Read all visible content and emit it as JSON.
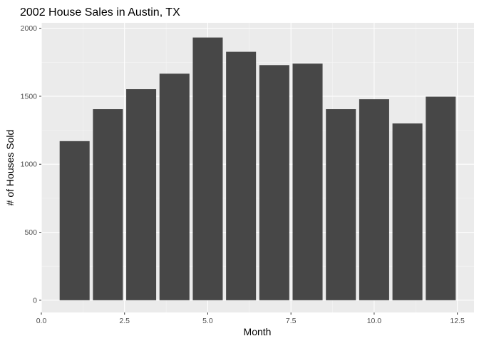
{
  "chart_data": {
    "type": "bar",
    "title": "2002 House Sales in Austin, TX",
    "xlabel": "Month",
    "ylabel": "# of Houses Sold",
    "x": [
      1,
      2,
      3,
      4,
      5,
      6,
      7,
      8,
      9,
      10,
      11,
      12
    ],
    "values": [
      1170,
      1405,
      1552,
      1666,
      1932,
      1827,
      1729,
      1740,
      1405,
      1478,
      1300,
      1497
    ],
    "xlim": [
      0,
      13
    ],
    "ylim": [
      -90,
      2040
    ],
    "xticks": [
      0,
      2.5,
      5,
      7.5,
      10,
      12.5
    ],
    "xtick_labels": [
      "0.0",
      "2.5",
      "5.0",
      "7.5",
      "10.0",
      "12.5"
    ],
    "yticks": [
      0,
      500,
      1000,
      1500,
      2000
    ],
    "ytick_labels": [
      "0",
      "500",
      "1000",
      "1500",
      "2000"
    ],
    "bar_width": 0.9,
    "grid": true,
    "colors": {
      "bar": "#474747",
      "panel": "#ebebeb",
      "grid_major": "#ffffff",
      "grid_minor": "#f5f5f5",
      "text": "#4d4d4d",
      "title": "#000000"
    }
  }
}
